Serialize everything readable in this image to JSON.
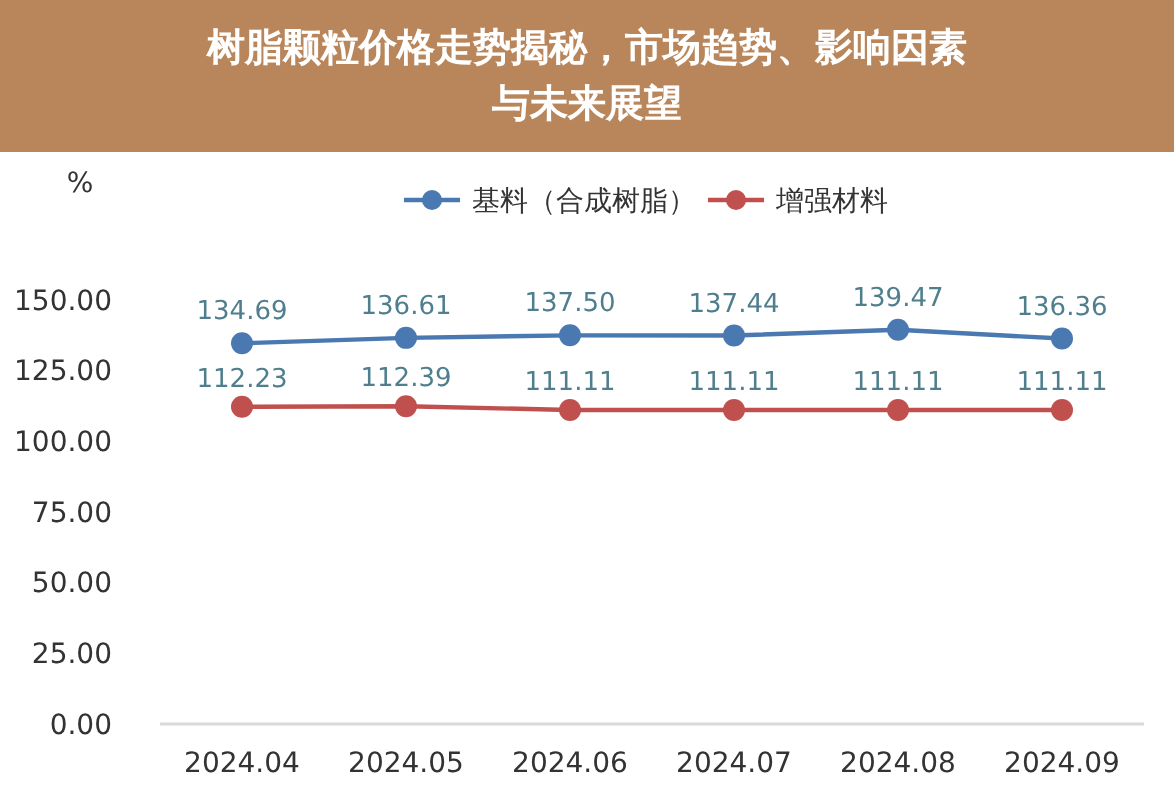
{
  "chart_data": {
    "type": "line",
    "title": "树脂颗粒价格走势揭秘，市场趋势、影响因素与未来展望",
    "ylabel": "%",
    "categories": [
      "2024.04",
      "2024.05",
      "2024.06",
      "2024.07",
      "2024.08",
      "2024.09"
    ],
    "series": [
      {
        "name": "基料（合成树脂）",
        "color": "#4a78b0",
        "values": [
          134.69,
          136.61,
          137.5,
          137.44,
          139.47,
          136.36
        ],
        "value_labels": [
          "134.69",
          "136.61",
          "137.50",
          "137.44",
          "139.47",
          "136.36"
        ]
      },
      {
        "name": "增强材料",
        "color": "#c0504d",
        "values": [
          112.23,
          112.39,
          111.11,
          111.11,
          111.11,
          111.11
        ],
        "value_labels": [
          "112.23",
          "112.39",
          "111.11",
          "111.11",
          "111.11",
          "111.11"
        ]
      }
    ],
    "ylim": [
      0,
      150
    ],
    "yticks": [
      {
        "value": 0,
        "label": "0.00"
      },
      {
        "value": 25,
        "label": "25.00"
      },
      {
        "value": 50,
        "label": "50.00"
      },
      {
        "value": 75,
        "label": "75.00"
      },
      {
        "value": 100,
        "label": "100.00"
      },
      {
        "value": 125,
        "label": "125.00"
      },
      {
        "value": 150,
        "label": "150.00"
      }
    ],
    "legend": "top",
    "marker": "circle",
    "line_style": "solid",
    "grid": false
  }
}
